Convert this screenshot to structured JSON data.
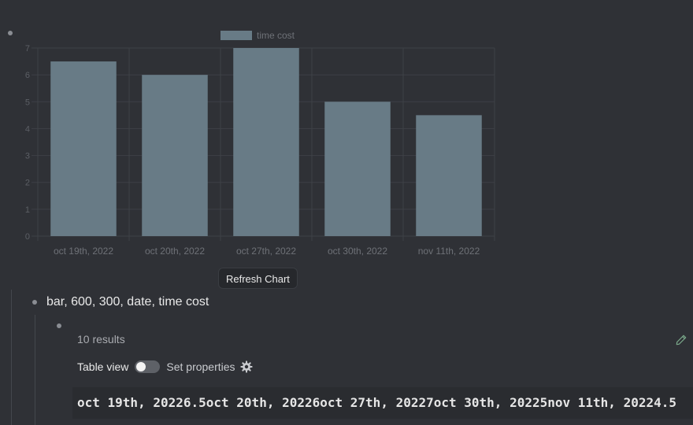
{
  "chart_data": {
    "type": "bar",
    "categories": [
      "oct 19th, 2022",
      "oct 20th, 2022",
      "oct 27th, 2022",
      "oct 30th, 2022",
      "nov 11th, 2022"
    ],
    "series": [
      {
        "name": "time cost",
        "values": [
          6.5,
          6,
          7,
          5,
          4.5
        ]
      }
    ],
    "yticks": [
      "0",
      "1",
      "2",
      "3",
      "4",
      "5",
      "6",
      "7"
    ],
    "ylim": [
      0,
      7
    ],
    "legend_position": "top",
    "grid": true,
    "bar_color": "#687b86",
    "grid_color": "#3e4146"
  },
  "chart": {
    "refresh_label": "Refresh Chart"
  },
  "block": {
    "text": "bar, 600, 300, date, time cost"
  },
  "query": {
    "results_count": "10 results",
    "table_view_label": "Table view",
    "set_properties_label": "Set properties",
    "table_view_enabled": false,
    "result_text": "oct 19th, 20226.5oct 20th, 20226oct 27th, 20227oct 30th, 20225nov 11th, 20224.5"
  },
  "colors": {
    "background": "#2f3136",
    "accent": "#687b86",
    "edit_icon": "#7aa88a"
  }
}
